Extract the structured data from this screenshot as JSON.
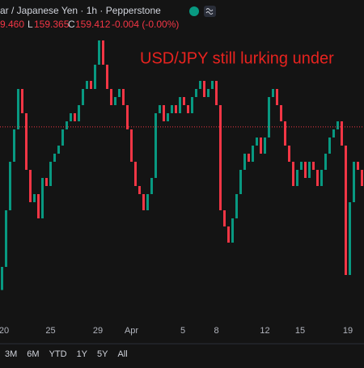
{
  "chart_data": {
    "type": "candlestick",
    "header": {
      "symbol": "ar / Japanese Yen · 1h · Pepperstone",
      "high_tail": "9.460",
      "low_prefix": "L",
      "low": "159.365",
      "close_prefix": "C",
      "close": "159.412",
      "change": "-0.004 (-0.00%)"
    },
    "annotation": "USD/JPY still lurking under",
    "last_price": 159.412,
    "up_color": "#089981",
    "down_color": "#f23645",
    "ylim": [
      157.78,
      160.51
    ],
    "xticks": [
      {
        "value": 0.5,
        "label": "20"
      },
      {
        "value": 12,
        "label": "25"
      },
      {
        "value": 23.7,
        "label": "29"
      },
      {
        "value": 32,
        "label": "Apr"
      },
      {
        "value": 44.7,
        "label": "5"
      },
      {
        "value": 53,
        "label": "8"
      },
      {
        "value": 65,
        "label": "12"
      },
      {
        "value": 73.7,
        "label": "15"
      },
      {
        "value": 85.5,
        "label": "19"
      }
    ],
    "open": [
      158.0,
      158.2,
      158.69,
      159.11,
      159.39,
      159.74,
      159.53,
      159.04,
      158.76,
      158.83,
      158.62,
      158.97,
      158.9,
      159.11,
      159.18,
      159.25,
      159.39,
      159.46,
      159.53,
      159.46,
      159.6,
      159.74,
      159.81,
      159.74,
      159.95,
      160.16,
      159.95,
      159.74,
      159.6,
      159.67,
      159.74,
      159.6,
      159.39,
      159.11,
      158.9,
      158.83,
      158.69,
      158.83,
      158.97,
      159.53,
      159.6,
      159.46,
      159.53,
      159.6,
      159.53,
      159.67,
      159.6,
      159.53,
      159.67,
      159.74,
      159.81,
      159.67,
      159.74,
      159.81,
      159.6,
      158.69,
      158.55,
      158.41,
      158.62,
      158.83,
      159.04,
      159.18,
      159.11,
      159.25,
      159.32,
      159.18,
      159.32,
      159.67,
      159.74,
      159.6,
      159.46,
      159.25,
      159.11,
      158.9,
      159.04,
      159.11,
      158.97,
      159.11,
      159.04,
      158.9,
      159.04,
      159.18,
      159.32,
      159.39,
      159.46,
      159.25,
      158.13,
      158.76,
      159.11,
      159.04
    ],
    "close": [
      158.2,
      158.69,
      159.11,
      159.39,
      159.74,
      159.53,
      159.04,
      158.76,
      158.83,
      158.62,
      158.97,
      158.9,
      159.11,
      159.18,
      159.25,
      159.39,
      159.46,
      159.53,
      159.46,
      159.6,
      159.74,
      159.81,
      159.74,
      159.95,
      160.16,
      159.95,
      159.74,
      159.6,
      159.67,
      159.74,
      159.6,
      159.39,
      159.11,
      158.9,
      158.83,
      158.69,
      158.83,
      158.97,
      159.53,
      159.6,
      159.46,
      159.53,
      159.6,
      159.53,
      159.67,
      159.6,
      159.53,
      159.67,
      159.74,
      159.81,
      159.67,
      159.74,
      159.81,
      159.6,
      158.69,
      158.55,
      158.41,
      158.62,
      158.83,
      159.04,
      159.18,
      159.11,
      159.25,
      159.32,
      159.18,
      159.32,
      159.67,
      159.74,
      159.6,
      159.46,
      159.25,
      159.11,
      158.9,
      159.04,
      159.11,
      158.97,
      159.11,
      159.04,
      158.9,
      159.04,
      159.18,
      159.32,
      159.39,
      159.46,
      159.25,
      158.13,
      158.76,
      159.11,
      159.04,
      158.9
    ],
    "range_buttons": [
      "3M",
      "6M",
      "YTD",
      "1Y",
      "5Y",
      "All"
    ]
  }
}
